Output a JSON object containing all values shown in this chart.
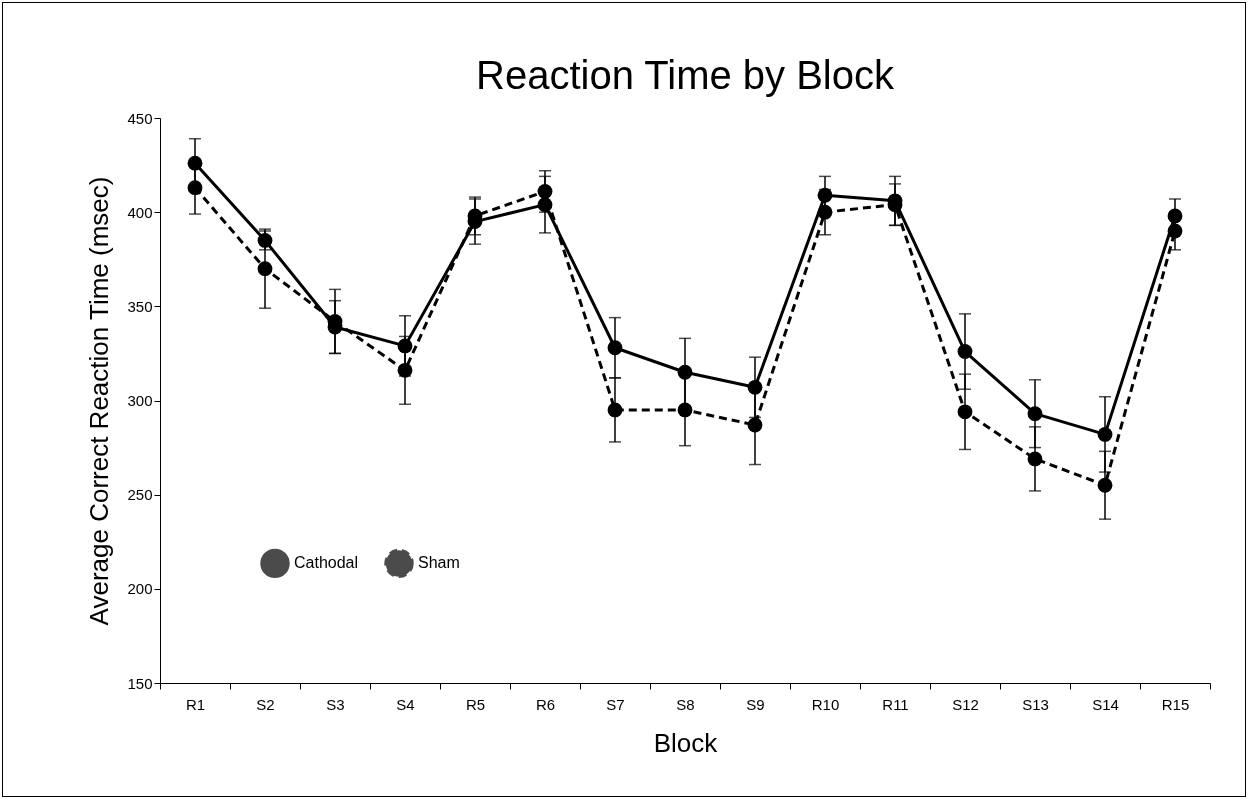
{
  "chart_data": {
    "type": "line",
    "title": "Reaction Time by Block",
    "xlabel": "Block",
    "ylabel": "Average Correct Reaction Time (msec)",
    "categories": [
      "R1",
      "S2",
      "S3",
      "S4",
      "R5",
      "R6",
      "S7",
      "S8",
      "S9",
      "R10",
      "R11",
      "S12",
      "S13",
      "S14",
      "R15"
    ],
    "series": [
      {
        "name": "Cathodal",
        "color": "#000000",
        "line_style": "solid",
        "values": [
          426,
          385,
          339,
          329,
          395,
          404,
          328,
          315,
          307,
          409,
          406,
          326,
          293,
          282,
          398
        ],
        "errors": [
          13,
          5,
          14,
          16,
          12,
          15,
          16,
          18,
          16,
          10,
          13,
          20,
          18,
          20,
          9
        ]
      },
      {
        "name": "Sham",
        "color": "#000000",
        "line_style": "dashed",
        "values": [
          413,
          370,
          342,
          316,
          398,
          411,
          295,
          295,
          287,
          400,
          404,
          294,
          269,
          255,
          390
        ],
        "errors": [
          14,
          21,
          17,
          18,
          10,
          11,
          17,
          19,
          21,
          12,
          11,
          20,
          17,
          18,
          10
        ]
      }
    ],
    "ylim": [
      150,
      450
    ],
    "yticks": [
      150,
      200,
      250,
      300,
      350,
      400,
      450
    ],
    "grid": false,
    "legend": "bottom left",
    "marker": "circle"
  }
}
